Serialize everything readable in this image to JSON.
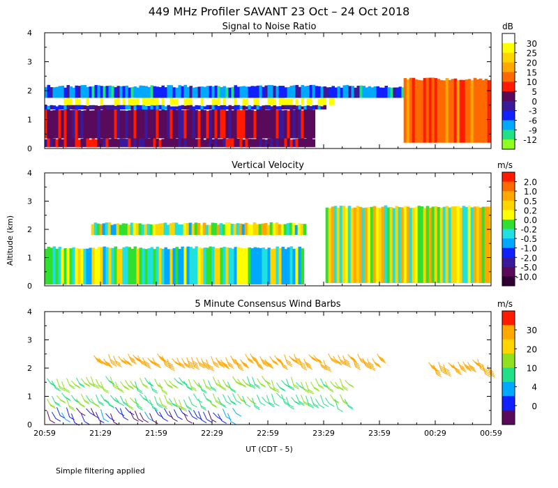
{
  "figure": {
    "title": "449 MHz Profiler SAVANT 23 Oct – 24 Oct 2018",
    "ylabel": "Altitude (km)",
    "xlabel": "UT  (CDT - 5)",
    "footnote": "Simple filtering applied"
  },
  "chart_data": [
    {
      "type": "heatmap",
      "title": "Signal to Noise Ratio",
      "units": "dB",
      "x_range_hours": [
        20.9833,
        24.9833
      ],
      "ylim": [
        0,
        4
      ],
      "y_ticks": [
        "0",
        "1",
        "2",
        "3",
        "4"
      ],
      "x_ticks": [
        "20:59",
        "21:29",
        "21:59",
        "22:29",
        "22:59",
        "23:29",
        "23:59",
        "00:29",
        "00:59"
      ],
      "x_ticks_visible": false,
      "colorbar": {
        "labels": [
          "30",
          "25",
          "20",
          "15",
          "10",
          "5",
          "0",
          "-3",
          "-6",
          "-9",
          "-12"
        ],
        "colors": [
          "#ffffff",
          "#ffff00",
          "#ffd500",
          "#ffa800",
          "#ff6a00",
          "#ff1a00",
          "#5a0a5a",
          "#3a1a9a",
          "#1020ff",
          "#00a8ff",
          "#20e088",
          "#90ff20"
        ]
      },
      "layers": [
        {
          "y_from_km": 0.05,
          "y_to_km": 0.35,
          "value_db": 2,
          "x_from_hours": 20.98,
          "x_to_hours": 23.4
        },
        {
          "y_from_km": 0.35,
          "y_to_km": 1.35,
          "value_db": 3,
          "x_from_hours": 20.98,
          "x_to_hours": 23.4
        },
        {
          "y_from_km": 1.35,
          "y_to_km": 1.5,
          "value_db": -3,
          "x_from_hours": 20.98,
          "x_to_hours": 23.5
        },
        {
          "y_from_km": 1.5,
          "y_to_km": 1.75,
          "value_db": 30,
          "x_from_hours": 20.98,
          "x_to_hours": 23.6
        },
        {
          "y_from_km": 1.75,
          "y_to_km": 2.15,
          "value_db": -6,
          "x_from_hours": 20.98,
          "x_to_hours": 24.5
        },
        {
          "y_from_km": 0.2,
          "y_to_km": 2.4,
          "value_db": 12,
          "x_from_hours": 24.2,
          "x_to_hours": 24.98
        }
      ]
    },
    {
      "type": "heatmap",
      "title": "Vertical Velocity",
      "units": "m/s",
      "ylim": [
        0,
        4
      ],
      "y_ticks": [
        "0",
        "1",
        "2",
        "3",
        "4"
      ],
      "x_ticks": [
        "20:59",
        "21:29",
        "21:59",
        "22:29",
        "22:59",
        "23:29",
        "23:59",
        "00:29",
        "00:59"
      ],
      "x_ticks_visible": false,
      "colorbar": {
        "labels": [
          "2.0",
          "1.0",
          "0.5",
          "0.2",
          "0.0",
          "-0.2",
          "-0.5",
          "-1.0",
          "-2.0",
          "-5.0",
          "-10.0"
        ],
        "colors": [
          "#ff1a00",
          "#ff6a00",
          "#ffa800",
          "#ffd500",
          "#ffff00",
          "#30e030",
          "#20e0e0",
          "#00a8ff",
          "#1020ff",
          "#3a1a9a",
          "#5a0a5a",
          "#300030"
        ]
      },
      "layers": [
        {
          "y_from_km": 0.05,
          "y_to_km": 1.35,
          "value_ms": -0.2,
          "x_from_hours": 20.98,
          "x_to_hours": 23.3
        },
        {
          "y_from_km": 1.8,
          "y_to_km": 2.2,
          "value_ms": 0.0,
          "x_from_hours": 21.4,
          "x_to_hours": 23.3
        },
        {
          "y_from_km": 0.1,
          "y_to_km": 2.8,
          "value_ms": 0.2,
          "x_from_hours": 23.5,
          "x_to_hours": 24.98
        }
      ]
    },
    {
      "type": "scatter",
      "title": "5 Minute Consensus Wind Barbs",
      "units": "m/s",
      "ylim": [
        0,
        4
      ],
      "y_ticks": [
        "0",
        "1",
        "2",
        "3",
        "4"
      ],
      "x_ticks": [
        "20:59",
        "21:29",
        "21:59",
        "22:29",
        "22:59",
        "23:29",
        "23:59",
        "00:29",
        "00:59"
      ],
      "x_ticks_visible": true,
      "colorbar": {
        "labels": [
          "30",
          "20",
          "10",
          "4",
          "0"
        ],
        "colors": [
          "#ff1a00",
          "#ffa800",
          "#ffd500",
          "#90e020",
          "#20e088",
          "#00a8ff",
          "#1020ff",
          "#5a0a5a"
        ]
      },
      "barb_layers": [
        {
          "altitude_km": 0.5,
          "speed_ms": 3,
          "x_from_hours": 20.98,
          "x_to_hours": 22.7
        },
        {
          "altitude_km": 1.0,
          "speed_ms": 8,
          "x_from_hours": 20.98,
          "x_to_hours": 23.7
        },
        {
          "altitude_km": 1.6,
          "speed_ms": 10,
          "x_from_hours": 20.98,
          "x_to_hours": 23.7
        },
        {
          "altitude_km": 2.4,
          "speed_ms": 18,
          "x_from_hours": 21.4,
          "x_to_hours": 24.0
        },
        {
          "altitude_km": 2.2,
          "speed_ms": 20,
          "x_from_hours": 24.4,
          "x_to_hours": 24.98
        }
      ]
    }
  ]
}
